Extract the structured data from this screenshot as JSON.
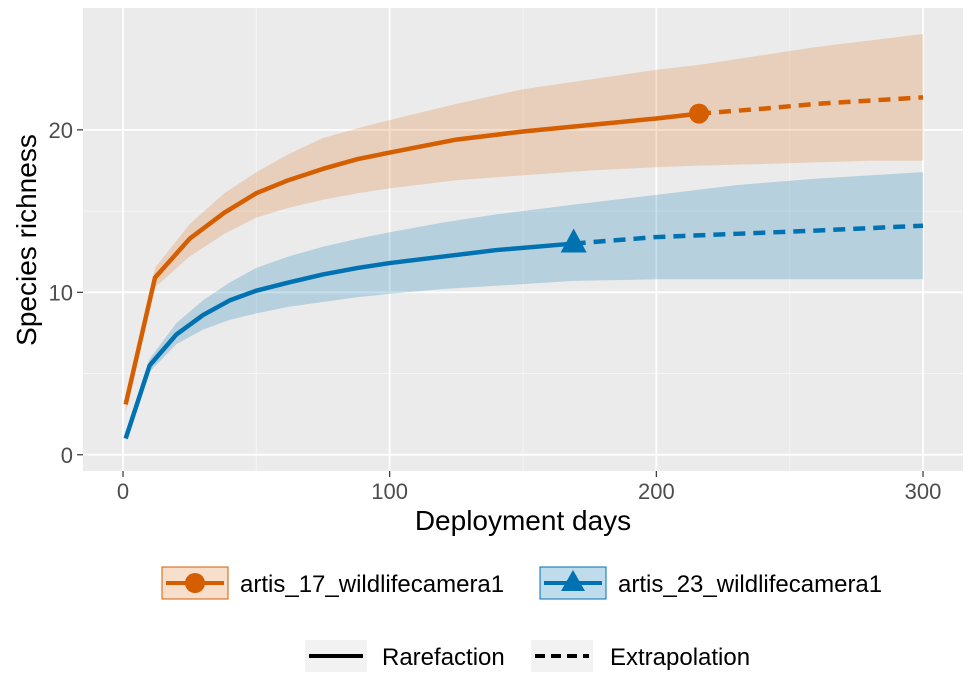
{
  "chart_data": {
    "type": "line",
    "title": "",
    "xlabel": "Deployment days",
    "ylabel": "Species richness",
    "xlim": [
      -15,
      315
    ],
    "ylim": [
      -1,
      27.5
    ],
    "xticks": [
      0,
      100,
      200,
      300
    ],
    "yticks": [
      0,
      10,
      20
    ],
    "xtick_labels": [
      "0",
      "100",
      "200",
      "300"
    ],
    "ytick_labels": [
      "0",
      "10",
      "20"
    ],
    "grid": true,
    "legend_position": "bottom",
    "series": [
      {
        "name": "artis_17_wildlifecamera1",
        "color": "#D55E00",
        "marker": "circle",
        "observed": {
          "x": 216,
          "y": 21.0
        },
        "rarefaction": {
          "x": [
            1,
            12,
            25,
            38,
            50,
            62,
            75,
            88,
            100,
            125,
            150,
            175,
            200,
            216
          ],
          "y": [
            3.1,
            10.9,
            13.3,
            14.9,
            16.1,
            16.9,
            17.6,
            18.2,
            18.6,
            19.4,
            19.9,
            20.3,
            20.7,
            21.0
          ],
          "lower": [
            2.6,
            10.3,
            12.2,
            13.6,
            14.6,
            15.2,
            15.7,
            16.1,
            16.4,
            16.9,
            17.2,
            17.5,
            17.7,
            17.8
          ],
          "upper": [
            3.6,
            11.5,
            14.2,
            16.1,
            17.4,
            18.5,
            19.5,
            20.1,
            20.6,
            21.6,
            22.5,
            23.1,
            23.7,
            24.0
          ]
        },
        "extrapolation": {
          "x": [
            216,
            240,
            260,
            280,
            300
          ],
          "y": [
            21.0,
            21.3,
            21.6,
            21.8,
            22.0
          ],
          "lower": [
            17.8,
            17.9,
            18.0,
            18.1,
            18.1
          ],
          "upper": [
            24.0,
            24.6,
            25.1,
            25.5,
            25.9
          ]
        }
      },
      {
        "name": "artis_23_wildlifecamera1",
        "color": "#0072B2",
        "marker": "triangle",
        "observed": {
          "x": 169,
          "y": 13.0
        },
        "rarefaction": {
          "x": [
            1,
            10,
            20,
            30,
            40,
            50,
            62,
            75,
            88,
            100,
            120,
            140,
            169
          ],
          "y": [
            1.0,
            5.5,
            7.4,
            8.6,
            9.5,
            10.1,
            10.6,
            11.1,
            11.5,
            11.8,
            12.2,
            12.6,
            13.0
          ],
          "lower": [
            0.9,
            5.1,
            6.8,
            7.7,
            8.3,
            8.7,
            9.1,
            9.4,
            9.7,
            9.9,
            10.2,
            10.4,
            10.7
          ],
          "upper": [
            1.1,
            5.9,
            8.1,
            9.5,
            10.6,
            11.5,
            12.2,
            12.8,
            13.3,
            13.7,
            14.3,
            14.8,
            15.4
          ]
        },
        "extrapolation": {
          "x": [
            169,
            200,
            230,
            260,
            300
          ],
          "y": [
            13.0,
            13.4,
            13.6,
            13.8,
            14.1
          ],
          "lower": [
            10.7,
            10.8,
            10.8,
            10.8,
            10.8
          ],
          "upper": [
            15.4,
            16.0,
            16.6,
            17.0,
            17.4
          ]
        }
      }
    ],
    "line_types": [
      {
        "name": "Rarefaction",
        "dash": "solid"
      },
      {
        "name": "Extrapolation",
        "dash": "dashed"
      }
    ]
  }
}
